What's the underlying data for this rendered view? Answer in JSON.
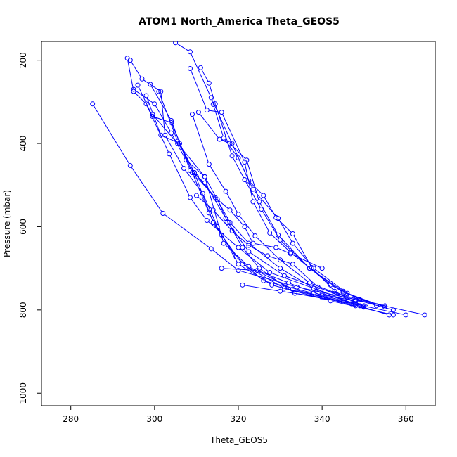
{
  "chart_data": {
    "type": "line",
    "title": "ATOM1 North_America Theta_GEOS5",
    "xlabel": "Theta_GEOS5",
    "ylabel": "Pressure (mbar)",
    "xlim": [
      273,
      367
    ],
    "ylim": [
      1030,
      155
    ],
    "y_reversed": true,
    "xticks": [
      280,
      300,
      320,
      340,
      360
    ],
    "yticks": [
      200,
      400,
      600,
      800,
      1000
    ],
    "grid": false,
    "legend": "none",
    "color": "#0000ff",
    "marker": "open-circle",
    "series": [
      {
        "points": [
          [
            285.2,
            305
          ],
          [
            294.2,
            453
          ],
          [
            302,
            568
          ],
          [
            313.5,
            653
          ],
          [
            320,
            705
          ],
          [
            334,
            745
          ],
          [
            348,
            775
          ],
          [
            364.5,
            812
          ]
        ]
      },
      {
        "points": [
          [
            293.5,
            195
          ],
          [
            295,
            275
          ],
          [
            298,
            305
          ],
          [
            303.5,
            425
          ],
          [
            308.5,
            530
          ],
          [
            312.5,
            585
          ],
          [
            320,
            650
          ],
          [
            327.5,
            710
          ],
          [
            338,
            748
          ],
          [
            349,
            790
          ]
        ]
      },
      {
        "points": [
          [
            294.2,
            200
          ],
          [
            297,
            245
          ],
          [
            301.5,
            275
          ],
          [
            302.5,
            380
          ],
          [
            307,
            460
          ],
          [
            311.5,
            520
          ],
          [
            315,
            600
          ],
          [
            320,
            690
          ],
          [
            328,
            740
          ],
          [
            342,
            778
          ],
          [
            357,
            812
          ]
        ]
      },
      {
        "points": [
          [
            296,
            260
          ],
          [
            299.5,
            335
          ],
          [
            304,
            350
          ],
          [
            309,
            470
          ],
          [
            313,
            567
          ],
          [
            316,
            620
          ],
          [
            321,
            690
          ],
          [
            331,
            748
          ],
          [
            345,
            780
          ],
          [
            360,
            812
          ]
        ]
      },
      {
        "points": [
          [
            298,
            285
          ],
          [
            301.5,
            380
          ],
          [
            306,
            400
          ],
          [
            310,
            480
          ],
          [
            315,
            535
          ],
          [
            317.5,
            590
          ],
          [
            322.5,
            660
          ],
          [
            331,
            718
          ],
          [
            343,
            760
          ],
          [
            355,
            790
          ]
        ]
      },
      {
        "points": [
          [
            299,
            258
          ],
          [
            304,
            345
          ],
          [
            308.5,
            465
          ],
          [
            312,
            495
          ],
          [
            317,
            580
          ],
          [
            321,
            650
          ],
          [
            325,
            700
          ],
          [
            333.5,
            760
          ],
          [
            347,
            785
          ]
        ]
      },
      {
        "points": [
          [
            299.5,
            330
          ],
          [
            305.5,
            400
          ],
          [
            312,
            480
          ],
          [
            318,
            590
          ],
          [
            322.5,
            640
          ],
          [
            330,
            700
          ],
          [
            340,
            760
          ],
          [
            350.5,
            793
          ]
        ]
      },
      {
        "points": [
          [
            301,
            275
          ],
          [
            305.5,
            395
          ],
          [
            309.5,
            470
          ],
          [
            314,
            590
          ],
          [
            319.5,
            673
          ],
          [
            326,
            730
          ],
          [
            338,
            760
          ],
          [
            348,
            778
          ]
        ]
      },
      {
        "points": [
          [
            295,
            270
          ],
          [
            300,
            305
          ],
          [
            304,
            375
          ],
          [
            307.5,
            440
          ],
          [
            312,
            480
          ],
          [
            316.5,
            640
          ],
          [
            322.5,
            696
          ],
          [
            333,
            750
          ],
          [
            347,
            785
          ],
          [
            356,
            812
          ]
        ]
      },
      {
        "points": [
          [
            310.5,
            325
          ],
          [
            315.5,
            390
          ],
          [
            318,
            400
          ],
          [
            322,
            440
          ],
          [
            325,
            540
          ],
          [
            329.5,
            620
          ],
          [
            337,
            700
          ],
          [
            345,
            758
          ],
          [
            355,
            793
          ]
        ]
      },
      {
        "points": [
          [
            308.5,
            220
          ],
          [
            312.5,
            320
          ],
          [
            316,
            325
          ],
          [
            321.5,
            445
          ],
          [
            323.5,
            540
          ],
          [
            327.5,
            615
          ],
          [
            332.5,
            662
          ],
          [
            342,
            740
          ],
          [
            349,
            775
          ]
        ]
      },
      {
        "points": [
          [
            311,
            218
          ],
          [
            313,
            255
          ],
          [
            314.5,
            305
          ],
          [
            318.5,
            430
          ],
          [
            321.5,
            487
          ],
          [
            325.5,
            558
          ],
          [
            330,
            632
          ],
          [
            337,
            700
          ],
          [
            345,
            755
          ],
          [
            353,
            790
          ]
        ]
      },
      {
        "points": [
          [
            314,
            306
          ],
          [
            316.5,
            387
          ],
          [
            320,
            435
          ],
          [
            323.5,
            510
          ],
          [
            329.5,
            580
          ],
          [
            333,
            640
          ],
          [
            338,
            700
          ],
          [
            346,
            760
          ],
          [
            355,
            793
          ]
        ]
      },
      {
        "points": [
          [
            309,
            330
          ],
          [
            313,
            450
          ],
          [
            317,
            515
          ],
          [
            320,
            570
          ],
          [
            324,
            622
          ],
          [
            330,
            680
          ],
          [
            337,
            735
          ],
          [
            346,
            770
          ],
          [
            357,
            800
          ]
        ]
      },
      {
        "points": [
          [
            305,
            158
          ],
          [
            308.5,
            180
          ],
          [
            313.5,
            290
          ],
          [
            318.5,
            400
          ],
          [
            322.5,
            490
          ],
          [
            326,
            525
          ],
          [
            329,
            578
          ],
          [
            333,
            617
          ],
          [
            337.5,
            698
          ],
          [
            343,
            755
          ],
          [
            350,
            793
          ]
        ]
      },
      {
        "points": [
          [
            316,
            700
          ],
          [
            324.5,
            705
          ],
          [
            332,
            735
          ],
          [
            340,
            765
          ],
          [
            348,
            785
          ]
        ]
      },
      {
        "points": [
          [
            321,
            740
          ],
          [
            330,
            755
          ],
          [
            340,
            770
          ],
          [
            348,
            790
          ]
        ]
      },
      {
        "points": [
          [
            309.5,
            470
          ],
          [
            314.5,
            530
          ],
          [
            318,
            560
          ],
          [
            321.5,
            600
          ],
          [
            323.5,
            640
          ],
          [
            329,
            650
          ],
          [
            332.5,
            665
          ],
          [
            340,
            700
          ]
        ]
      },
      {
        "points": [
          [
            310,
            525
          ],
          [
            314,
            560
          ],
          [
            318.5,
            610
          ],
          [
            322.5,
            645
          ],
          [
            327,
            670
          ],
          [
            333,
            690
          ],
          [
            339,
            745
          ],
          [
            350,
            790
          ]
        ]
      }
    ]
  }
}
